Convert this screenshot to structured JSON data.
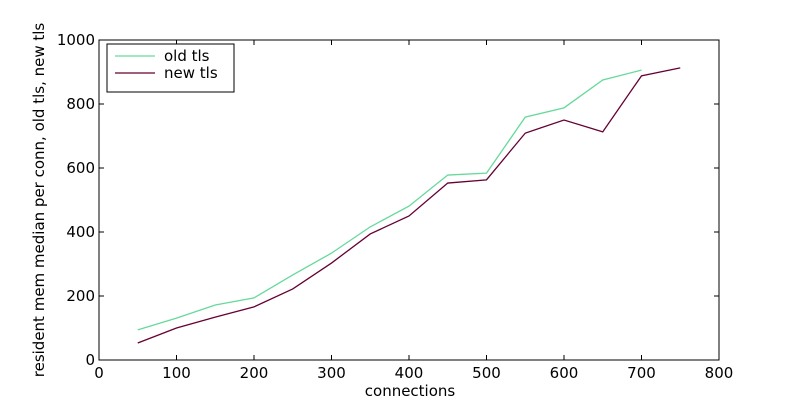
{
  "chart_data": {
    "type": "line",
    "x_label": "connections",
    "y_label": "resident mem median per conn, old tls, new tls",
    "xlim": [
      0,
      800
    ],
    "xticks": [
      0,
      100,
      200,
      300,
      400,
      500,
      600,
      700,
      800
    ],
    "ylim": [
      0,
      1000
    ],
    "yticks": [
      0,
      200,
      400,
      600,
      800,
      1000
    ],
    "grid": false,
    "legend": "upper left",
    "series": [
      {
        "name": "old tls",
        "color": "#66d99a",
        "x": [
          50,
          100,
          150,
          200,
          250,
          300,
          350,
          400,
          450,
          500,
          550,
          600,
          650,
          700
        ],
        "values": [
          94,
          131,
          172,
          194,
          266,
          334,
          416,
          481,
          578,
          584,
          759,
          788,
          875,
          906
        ]
      },
      {
        "name": "new tls",
        "color": "#660033",
        "x": [
          50,
          100,
          150,
          200,
          250,
          300,
          350,
          400,
          450,
          500,
          550,
          600,
          650,
          700,
          750
        ],
        "values": [
          53,
          100,
          134,
          166,
          222,
          303,
          394,
          450,
          553,
          563,
          709,
          750,
          713,
          888,
          913
        ]
      }
    ]
  }
}
